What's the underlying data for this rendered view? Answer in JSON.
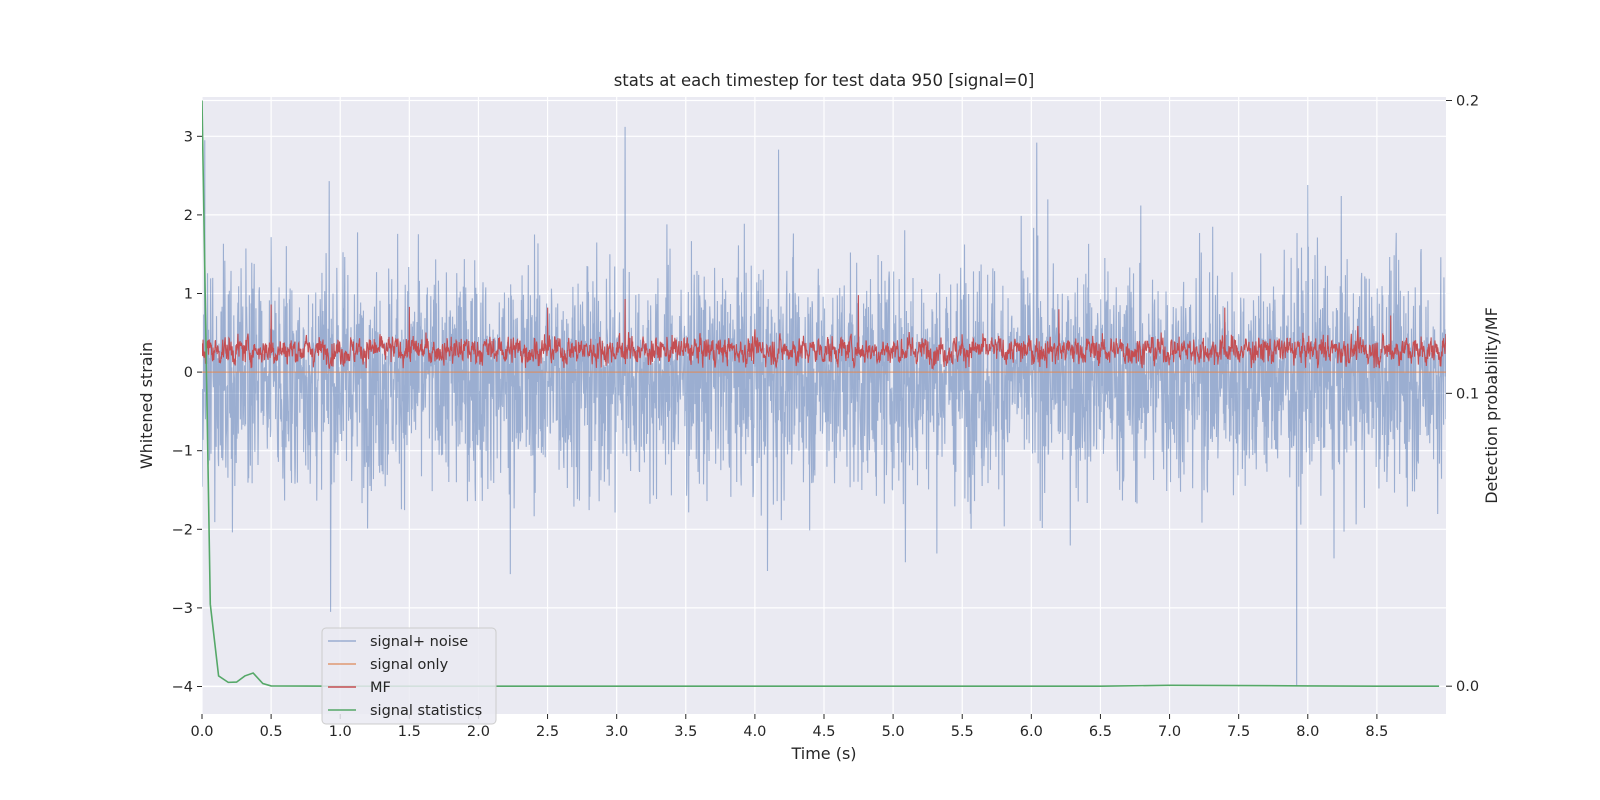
{
  "chart_data": {
    "type": "line",
    "title": "stats at each timestep for test data 950 [signal=0]",
    "xlabel": "Time (s)",
    "ylabel": "Whitened strain",
    "y2label": "Detection probability/MF",
    "xlim": [
      0,
      9.0
    ],
    "ylim": [
      -4.35,
      3.5
    ],
    "y2lim": [
      -0.0095,
      0.2012
    ],
    "x_ticks": [
      "0.0",
      "0.5",
      "1.0",
      "1.5",
      "2.0",
      "2.5",
      "3.0",
      "3.5",
      "4.0",
      "4.5",
      "5.0",
      "5.5",
      "6.0",
      "6.5",
      "7.0",
      "7.5",
      "8.0",
      "8.5"
    ],
    "y_ticks": [
      "−4",
      "−3",
      "−2",
      "−1",
      "0",
      "1",
      "2",
      "3"
    ],
    "y2_ticks": [
      "0.0",
      "0.1",
      "0.2"
    ],
    "grid": true,
    "legend_position": "lower-left",
    "colors": {
      "plot_background": "#EAEAF2",
      "grid": "#FFFFFF",
      "signal_noise": "#4C72B0",
      "signal_only": "#DD8452",
      "mf": "#C44E52",
      "signal_statistics": "#55A868"
    },
    "series": [
      {
        "name": "signal+ noise",
        "axis": "left",
        "description_stats": {
          "mean": -0.05,
          "std": 0.75,
          "min": -4.0,
          "max": 3.12
        },
        "peaks": [
          [
            0.02,
            2.95
          ],
          [
            0.92,
            2.43
          ],
          [
            3.06,
            3.12
          ],
          [
            4.17,
            2.83
          ],
          [
            6.04,
            2.92
          ],
          [
            8.0,
            2.38
          ]
        ],
        "troughs": [
          [
            0.93,
            -3.05
          ],
          [
            2.23,
            -2.57
          ],
          [
            4.09,
            -2.53
          ],
          [
            5.09,
            -2.42
          ],
          [
            7.92,
            -4.0
          ],
          [
            8.19,
            -2.37
          ]
        ]
      },
      {
        "name": "signal only",
        "axis": "left",
        "x": [
          0.0,
          9.0
        ],
        "y": [
          0.0,
          0.0
        ]
      },
      {
        "name": "MF",
        "axis": "left",
        "description_stats": {
          "mean": 0.28,
          "std": 0.13,
          "min": 0.0,
          "max": 0.98
        },
        "peaks": [
          [
            0.5,
            0.86
          ],
          [
            1.5,
            0.83
          ],
          [
            2.5,
            0.82
          ],
          [
            3.06,
            0.93
          ],
          [
            4.75,
            0.98
          ],
          [
            6.2,
            0.8
          ],
          [
            7.4,
            0.82
          ],
          [
            8.6,
            0.72
          ]
        ]
      },
      {
        "name": "signal statistics",
        "axis": "right",
        "x": [
          0.0,
          0.06,
          0.12,
          0.19,
          0.25,
          0.31,
          0.37,
          0.44,
          0.5,
          1.0,
          2.0,
          3.0,
          4.0,
          5.0,
          6.0,
          6.5,
          7.0,
          7.5,
          8.0,
          8.5,
          8.95
        ],
        "y": [
          0.2,
          0.028,
          0.0035,
          0.0013,
          0.0014,
          0.0035,
          0.0045,
          0.0009,
          0.0001,
          0.0,
          0.0,
          0.0,
          0.0,
          0.0,
          0.0,
          0.0,
          0.0003,
          0.0002,
          0.0001,
          0.0,
          0.0
        ]
      }
    ]
  }
}
